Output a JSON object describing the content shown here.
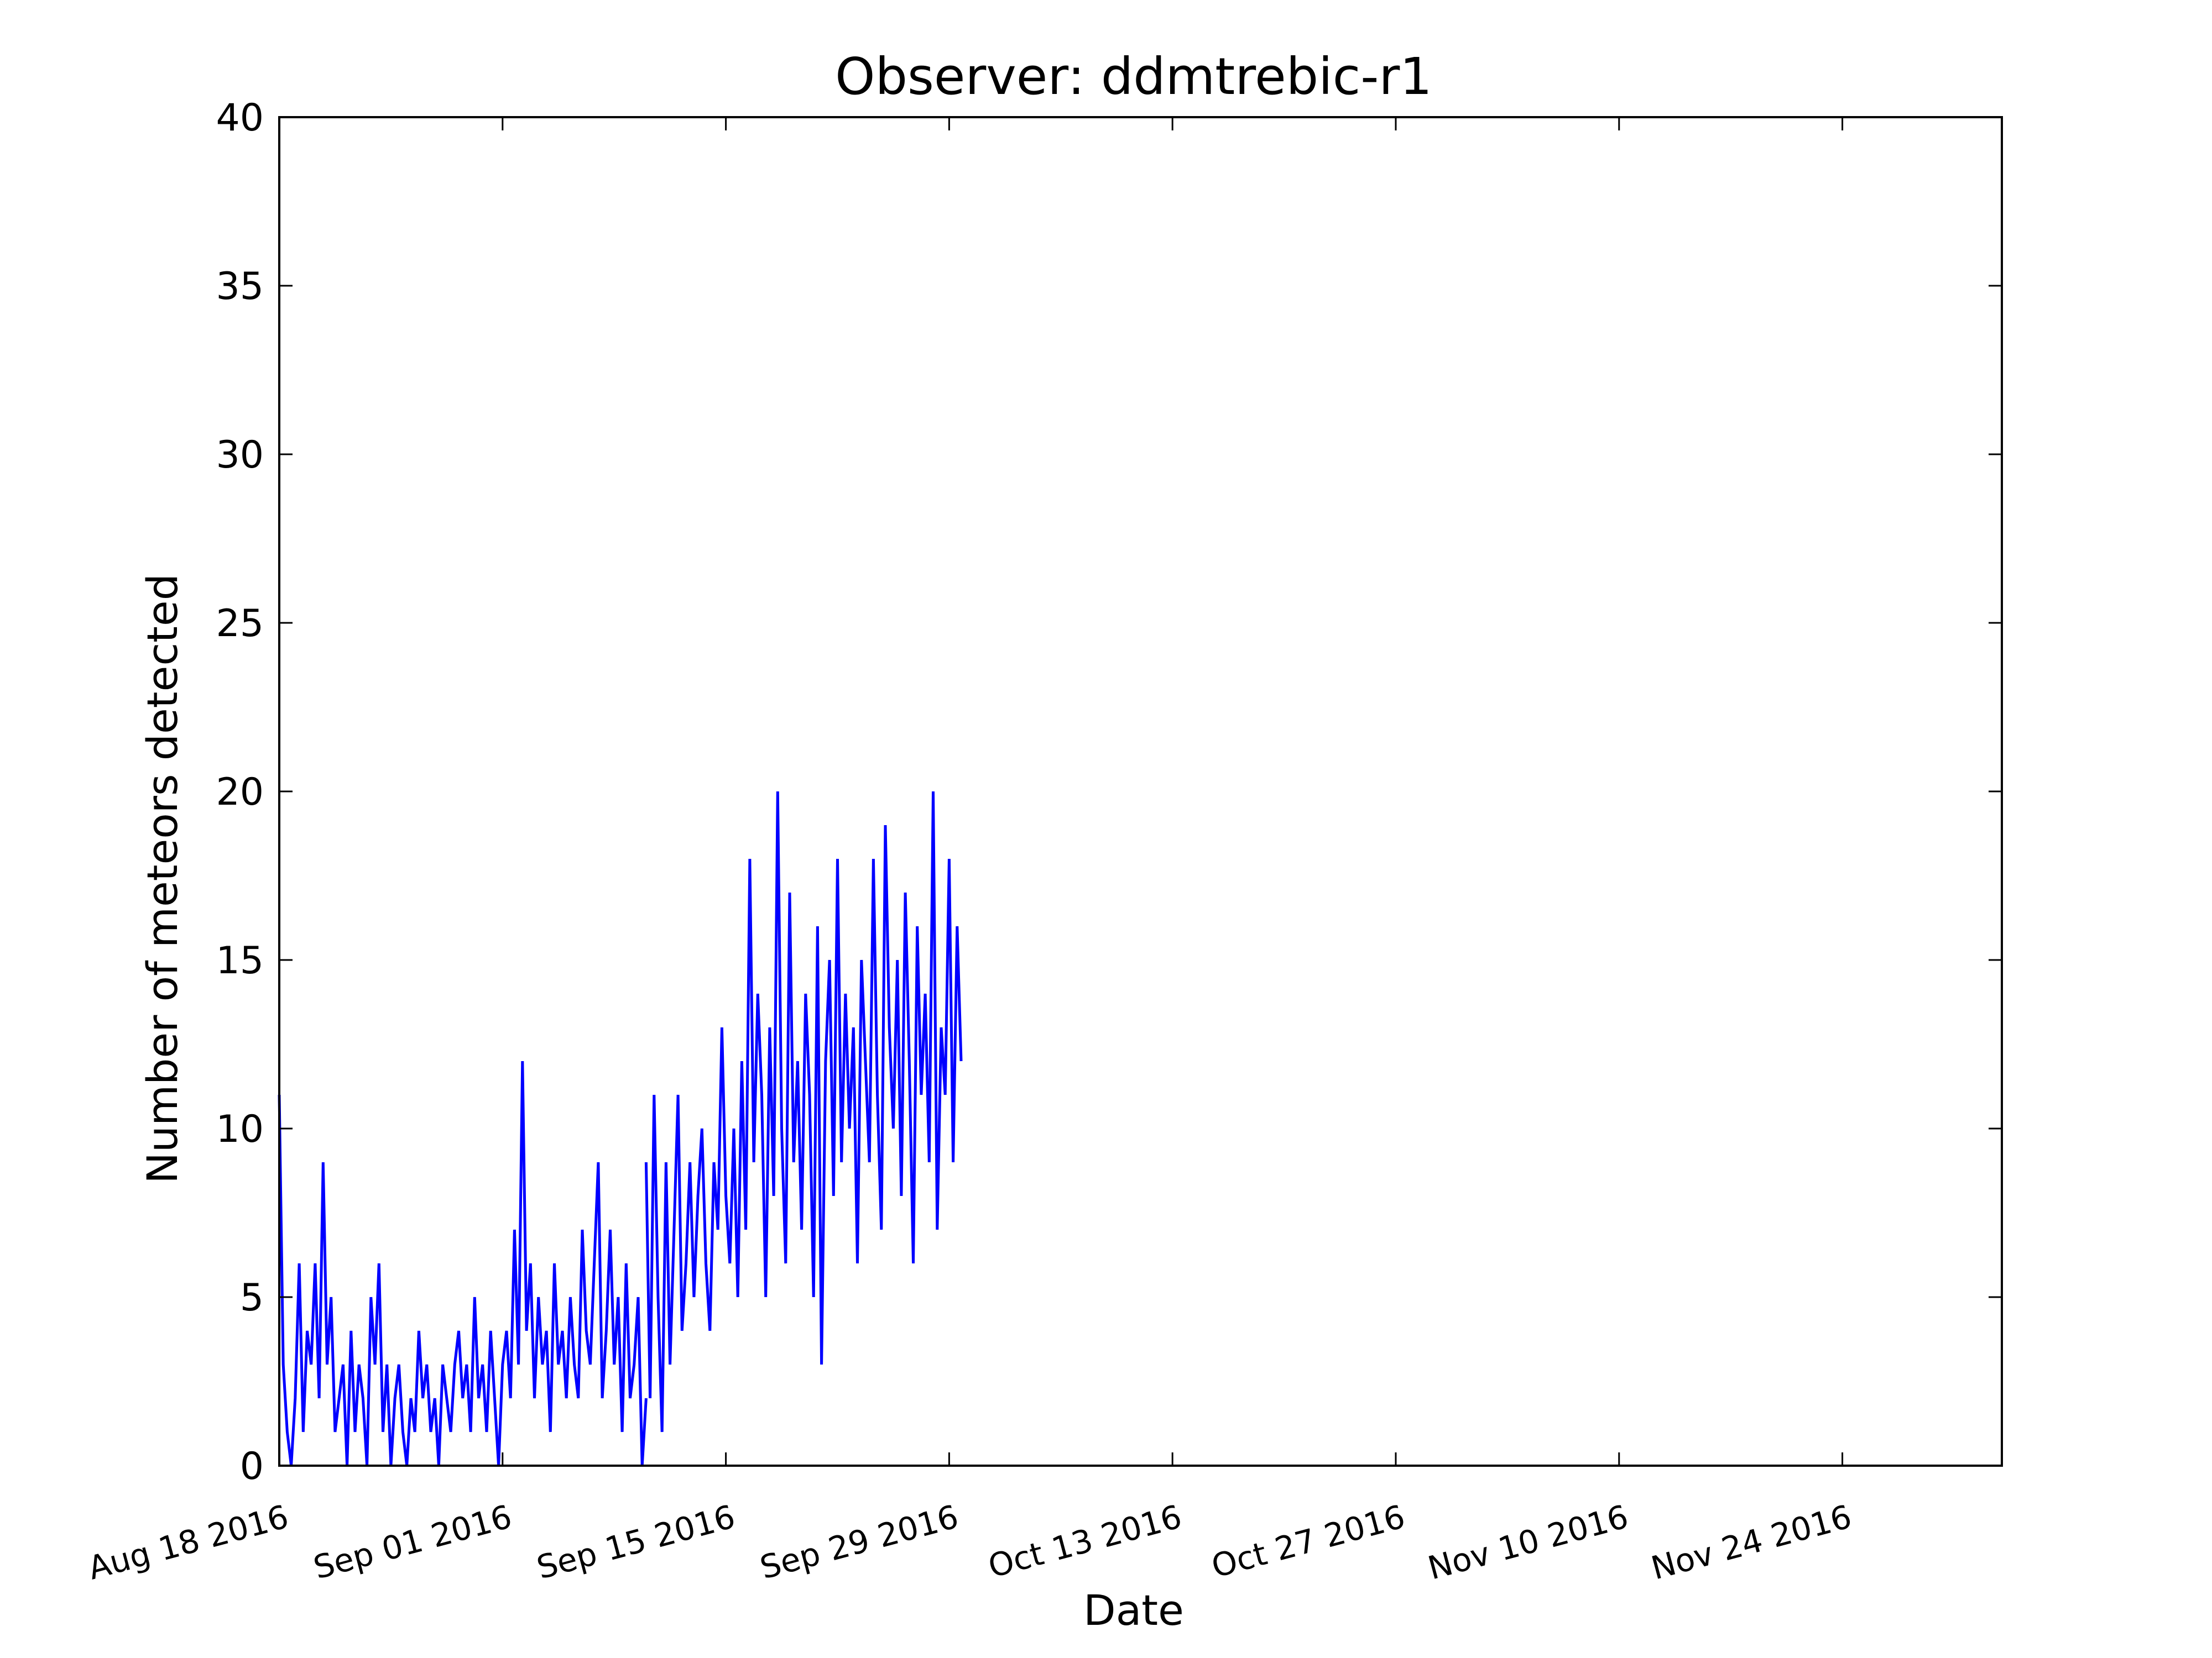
{
  "chart_data": {
    "type": "line",
    "title": "Observer: ddmtrebic-r1",
    "xlabel": "Date",
    "ylabel": "Number of meteors detected",
    "x_start": "2016-08-18",
    "x_end": "2016-12-04",
    "ylim": [
      0,
      40
    ],
    "yticks": [
      0,
      5,
      10,
      15,
      20,
      25,
      30,
      35,
      40
    ],
    "xticks": [
      {
        "date": "2016-08-18",
        "label": "Aug 18 2016"
      },
      {
        "date": "2016-09-01",
        "label": "Sep 01 2016"
      },
      {
        "date": "2016-09-15",
        "label": "Sep 15 2016"
      },
      {
        "date": "2016-09-29",
        "label": "Sep 29 2016"
      },
      {
        "date": "2016-10-13",
        "label": "Oct 13 2016"
      },
      {
        "date": "2016-10-27",
        "label": "Oct 27 2016"
      },
      {
        "date": "2016-11-10",
        "label": "Nov 10 2016"
      },
      {
        "date": "2016-11-24",
        "label": "Nov 24 2016"
      }
    ],
    "grid": false,
    "color": "#0000ff",
    "series": [
      {
        "segments": [
          {
            "start": "2016-08-18",
            "values": [
              11,
              3,
              1,
              0,
              2,
              6,
              1,
              4,
              3,
              6,
              2,
              9,
              3,
              5,
              1,
              2,
              3,
              0,
              4,
              1,
              3,
              2,
              0,
              5,
              3,
              6,
              1,
              3,
              0,
              2,
              3,
              1,
              0,
              2,
              1,
              4,
              2,
              3,
              1,
              2,
              0,
              3,
              2,
              1,
              3,
              4,
              2,
              3,
              1,
              5,
              2,
              3,
              1,
              4,
              2,
              0,
              3,
              4,
              2,
              7,
              3,
              12,
              4,
              6,
              2,
              5,
              3,
              4,
              1,
              6,
              3,
              4,
              2,
              5,
              3,
              2,
              7,
              4,
              3,
              6,
              9,
              2,
              4,
              7,
              3,
              5,
              1,
              6,
              2,
              3,
              5,
              0,
              2
            ]
          },
          {
            "start": "2016-09-10",
            "values": [
              9,
              2,
              11,
              5,
              1,
              9,
              3,
              7,
              11,
              4,
              6,
              9,
              5,
              8,
              10,
              6,
              4,
              9,
              7,
              13,
              8,
              6,
              10,
              5,
              12,
              7,
              18,
              9,
              14,
              11,
              5,
              13,
              8,
              20,
              10,
              6,
              17,
              9,
              12,
              7,
              14,
              11,
              5,
              16,
              3,
              12,
              15,
              8,
              18,
              9,
              14,
              10,
              13,
              6,
              15,
              12,
              9,
              18,
              11,
              7,
              19,
              13,
              10,
              15,
              8,
              17,
              12,
              6,
              16,
              11,
              14,
              9,
              20,
              7,
              13,
              11,
              18,
              9,
              16,
              12
            ]
          }
        ]
      }
    ]
  }
}
